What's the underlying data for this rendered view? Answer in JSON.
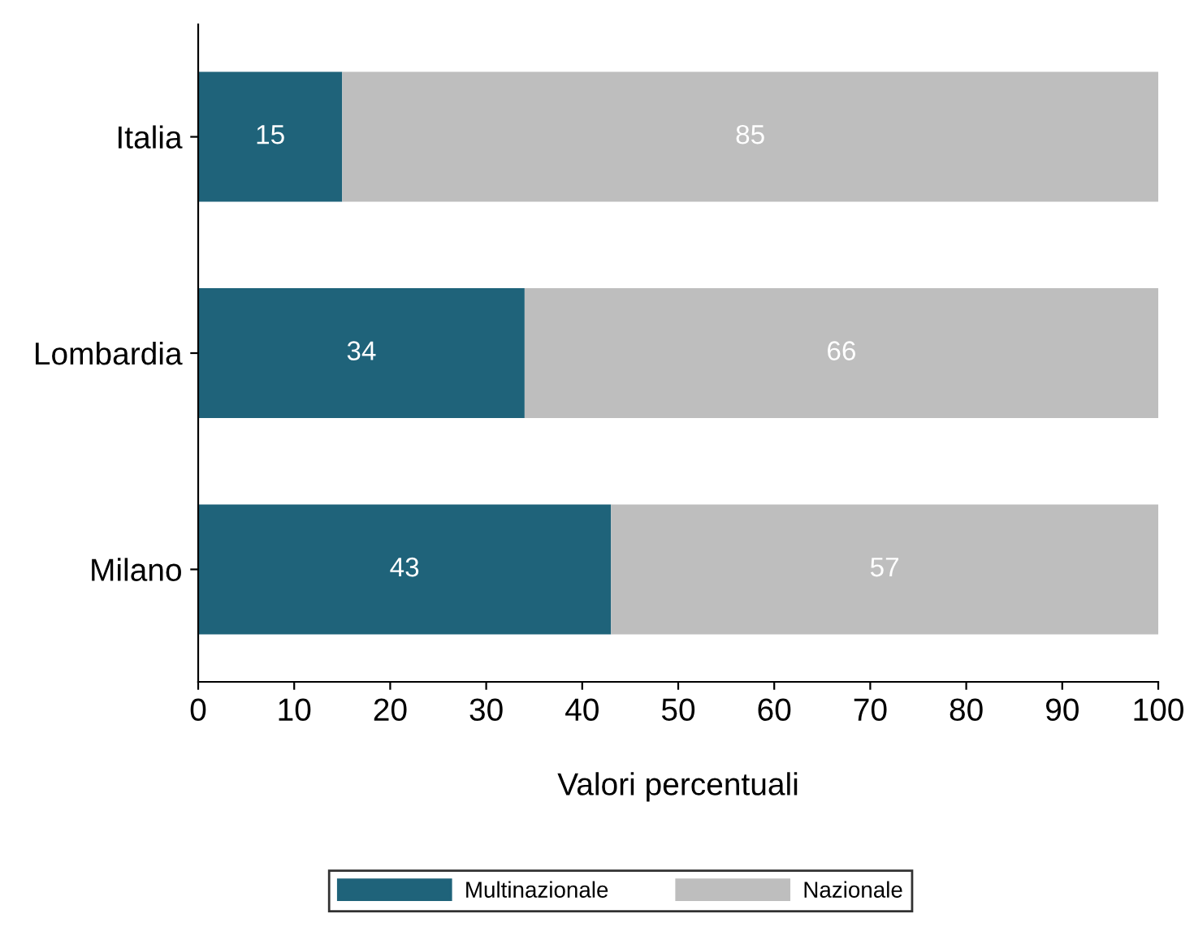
{
  "chart_data": {
    "type": "bar",
    "orientation": "horizontal",
    "stacked": true,
    "xlabel": "Valori percentuali",
    "categories": [
      "Italia",
      "Lombardia",
      "Milano"
    ],
    "series": [
      {
        "name": "Multinazionale",
        "color": "#1f637a",
        "values": [
          15,
          34,
          43
        ]
      },
      {
        "name": "Nazionale",
        "color": "#bebebe",
        "values": [
          85,
          66,
          57
        ]
      }
    ],
    "xlim": [
      0,
      100
    ],
    "xticks": [
      0,
      10,
      20,
      30,
      40,
      50,
      60,
      70,
      80,
      90,
      100
    ],
    "data_labels": true,
    "legend": "bottom",
    "grid": false
  }
}
